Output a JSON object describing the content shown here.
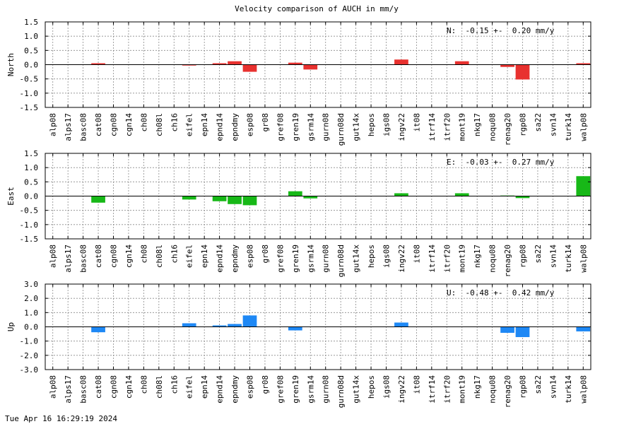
{
  "title": "Velocity comparison of AUCH in mm/y",
  "timestamp": "Tue Apr 16 16:29:19 2024",
  "chart_data": [
    {
      "type": "bar",
      "ylabel": "North",
      "ylim": [
        -1.5,
        1.5
      ],
      "yticks": [
        1.5,
        1.0,
        0.5,
        0.0,
        -0.5,
        -1.0,
        -1.5
      ],
      "ytick_labels": [
        "1.5",
        "1.0",
        "0.5",
        "0.0",
        "-0.5",
        "-1.0",
        "-1.5"
      ],
      "grid": true,
      "color": "#e8312f",
      "annotation": "N:  -0.15 +-  0.20 mm/y",
      "categories": [
        "alp08",
        "alps17",
        "basc08",
        "cat08",
        "cgn08",
        "cgn14",
        "ch08",
        "ch08l",
        "ch16",
        "eifel",
        "epn14",
        "epnd14",
        "epndmy",
        "esp08",
        "gr08",
        "gref08",
        "gren19",
        "gsrm14",
        "gurn08",
        "gurn08d",
        "gut14x",
        "hepos",
        "igs08",
        "ingv22",
        "it08",
        "itrf14",
        "itrf20",
        "mont19",
        "nkg17",
        "noqu08",
        "renag20",
        "rgp08",
        "sa22",
        "svn14",
        "turk14",
        "walp08"
      ],
      "values": [
        0,
        0,
        0,
        0.05,
        0,
        0,
        0,
        0,
        0,
        -0.03,
        0,
        0.05,
        0.12,
        -0.25,
        0,
        0,
        0.07,
        -0.17,
        0,
        0,
        0,
        0,
        0,
        0.18,
        0,
        0,
        0,
        0.12,
        0,
        0,
        -0.08,
        -0.52,
        0,
        0,
        0,
        0.05
      ]
    },
    {
      "type": "bar",
      "ylabel": "East",
      "ylim": [
        -1.5,
        1.5
      ],
      "yticks": [
        1.5,
        1.0,
        0.5,
        0.0,
        -0.5,
        -1.0,
        -1.5
      ],
      "ytick_labels": [
        "1.5",
        "1.0",
        "0.5",
        "0.0",
        "-0.5",
        "-1.0",
        "-1.5"
      ],
      "grid": true,
      "color": "#17b817",
      "annotation": "E:  -0.03 +-  0.27 mm/y",
      "categories": [
        "alp08",
        "alps17",
        "basc08",
        "cat08",
        "cgn08",
        "cgn14",
        "ch08",
        "ch08l",
        "ch16",
        "eifel",
        "epn14",
        "epnd14",
        "epndmy",
        "esp08",
        "gr08",
        "gref08",
        "gren19",
        "gsrm14",
        "gurn08",
        "gurn08d",
        "gut14x",
        "hepos",
        "igs08",
        "ingv22",
        "it08",
        "itrf14",
        "itrf20",
        "mont19",
        "nkg17",
        "noqu08",
        "renag20",
        "rgp08",
        "sa22",
        "svn14",
        "turk14",
        "walp08"
      ],
      "values": [
        0,
        0,
        0,
        -0.23,
        0,
        0,
        0,
        0,
        0,
        -0.12,
        0,
        -0.18,
        -0.28,
        -0.32,
        0,
        0,
        0.17,
        -0.08,
        0,
        0,
        0,
        0,
        0,
        0.1,
        0,
        0,
        0,
        0.1,
        0,
        0,
        0.02,
        -0.07,
        0,
        0,
        0,
        0.7
      ]
    },
    {
      "type": "bar",
      "ylabel": "Up",
      "ylim": [
        -3.0,
        3.0
      ],
      "yticks": [
        3.0,
        2.0,
        1.0,
        0.0,
        -1.0,
        -2.0,
        -3.0
      ],
      "ytick_labels": [
        "3.0",
        "2.0",
        "1.0",
        "0.0",
        "-1.0",
        "-2.0",
        "-3.0"
      ],
      "grid": true,
      "color": "#1e88f5",
      "annotation": "U:  -0.48 +-  0.42 mm/y",
      "categories": [
        "alp08",
        "alps17",
        "basc08",
        "cat08",
        "cgn08",
        "cgn14",
        "ch08",
        "ch08l",
        "ch16",
        "eifel",
        "epn14",
        "epnd14",
        "epndmy",
        "esp08",
        "gr08",
        "gref08",
        "gren19",
        "gsrm14",
        "gurn08",
        "gurn08d",
        "gut14x",
        "hepos",
        "igs08",
        "ingv22",
        "it08",
        "itrf14",
        "itrf20",
        "mont19",
        "nkg17",
        "noqu08",
        "renag20",
        "rgp08",
        "sa22",
        "svn14",
        "turk14",
        "walp08"
      ],
      "values": [
        0,
        0,
        0,
        -0.38,
        0,
        0,
        0,
        0,
        0,
        0.25,
        0,
        0.1,
        0.2,
        0.8,
        0,
        0,
        -0.25,
        0,
        0,
        0,
        0,
        0,
        0,
        0.3,
        0,
        0,
        0,
        0,
        0,
        0,
        -0.42,
        -0.72,
        0,
        0,
        0,
        -0.32
      ]
    }
  ]
}
